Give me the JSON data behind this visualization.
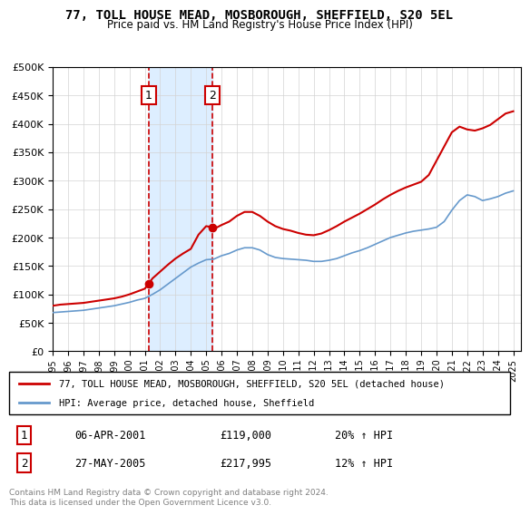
{
  "title": "77, TOLL HOUSE MEAD, MOSBOROUGH, SHEFFIELD, S20 5EL",
  "subtitle": "Price paid vs. HM Land Registry's House Price Index (HPI)",
  "legend_line1": "77, TOLL HOUSE MEAD, MOSBOROUGH, SHEFFIELD, S20 5EL (detached house)",
  "legend_line2": "HPI: Average price, detached house, Sheffield",
  "sale1_label": "1",
  "sale1_date": "06-APR-2001",
  "sale1_price": "£119,000",
  "sale1_hpi": "20% ↑ HPI",
  "sale2_label": "2",
  "sale2_date": "27-MAY-2005",
  "sale2_price": "£217,995",
  "sale2_hpi": "12% ↑ HPI",
  "footnote": "Contains HM Land Registry data © Crown copyright and database right 2024.\nThis data is licensed under the Open Government Licence v3.0.",
  "red_color": "#cc0000",
  "blue_color": "#6699cc",
  "shade_color": "#ddeeff",
  "ylim": [
    0,
    500000
  ],
  "yticks": [
    0,
    50000,
    100000,
    150000,
    200000,
    250000,
    300000,
    350000,
    400000,
    450000,
    500000
  ],
  "sale1_year": 2001.27,
  "sale2_year": 2005.41,
  "hpi_years": [
    1995,
    1995.5,
    1996,
    1996.5,
    1997,
    1997.5,
    1998,
    1998.5,
    1999,
    1999.5,
    2000,
    2000.5,
    2001,
    2001.5,
    2002,
    2002.5,
    2003,
    2003.5,
    2004,
    2004.5,
    2005,
    2005.5,
    2006,
    2006.5,
    2007,
    2007.5,
    2008,
    2008.5,
    2009,
    2009.5,
    2010,
    2010.5,
    2011,
    2011.5,
    2012,
    2012.5,
    2013,
    2013.5,
    2014,
    2014.5,
    2015,
    2015.5,
    2016,
    2016.5,
    2017,
    2017.5,
    2018,
    2018.5,
    2019,
    2019.5,
    2020,
    2020.5,
    2021,
    2021.5,
    2022,
    2022.5,
    2023,
    2023.5,
    2024,
    2024.5,
    2025
  ],
  "hpi_values": [
    68000,
    69000,
    70000,
    71000,
    72000,
    74000,
    76000,
    78000,
    80000,
    83000,
    86000,
    90000,
    93000,
    100000,
    108000,
    118000,
    128000,
    138000,
    148000,
    155000,
    161000,
    162000,
    168000,
    172000,
    178000,
    182000,
    182000,
    178000,
    170000,
    165000,
    163000,
    162000,
    161000,
    160000,
    158000,
    158000,
    160000,
    163000,
    168000,
    173000,
    177000,
    182000,
    188000,
    194000,
    200000,
    204000,
    208000,
    211000,
    213000,
    215000,
    218000,
    228000,
    248000,
    265000,
    275000,
    272000,
    265000,
    268000,
    272000,
    278000,
    282000
  ],
  "red_years": [
    1995,
    1995.5,
    1996,
    1996.5,
    1997,
    1997.5,
    1998,
    1998.5,
    1999,
    1999.5,
    2000,
    2000.5,
    2001,
    2001.27,
    2001.5,
    2002,
    2002.5,
    2003,
    2003.5,
    2004,
    2004.5,
    2005,
    2005.41,
    2005.5,
    2006,
    2006.5,
    2007,
    2007.5,
    2008,
    2008.5,
    2009,
    2009.5,
    2010,
    2010.5,
    2011,
    2011.5,
    2012,
    2012.5,
    2013,
    2013.5,
    2014,
    2014.5,
    2015,
    2015.5,
    2016,
    2016.5,
    2017,
    2017.5,
    2018,
    2018.5,
    2019,
    2019.5,
    2020,
    2020.5,
    2021,
    2021.5,
    2022,
    2022.5,
    2023,
    2023.5,
    2024,
    2024.5,
    2025
  ],
  "red_values": [
    80000,
    82000,
    83000,
    84000,
    85000,
    87000,
    89000,
    91000,
    93000,
    96000,
    100000,
    105000,
    110000,
    119000,
    128000,
    140000,
    152000,
    163000,
    172000,
    180000,
    205000,
    220000,
    217995,
    215000,
    222000,
    228000,
    238000,
    245000,
    245000,
    238000,
    228000,
    220000,
    215000,
    212000,
    208000,
    205000,
    204000,
    207000,
    213000,
    220000,
    228000,
    235000,
    242000,
    250000,
    258000,
    267000,
    275000,
    282000,
    288000,
    293000,
    298000,
    310000,
    335000,
    360000,
    385000,
    395000,
    390000,
    388000,
    392000,
    398000,
    408000,
    418000,
    422000
  ]
}
